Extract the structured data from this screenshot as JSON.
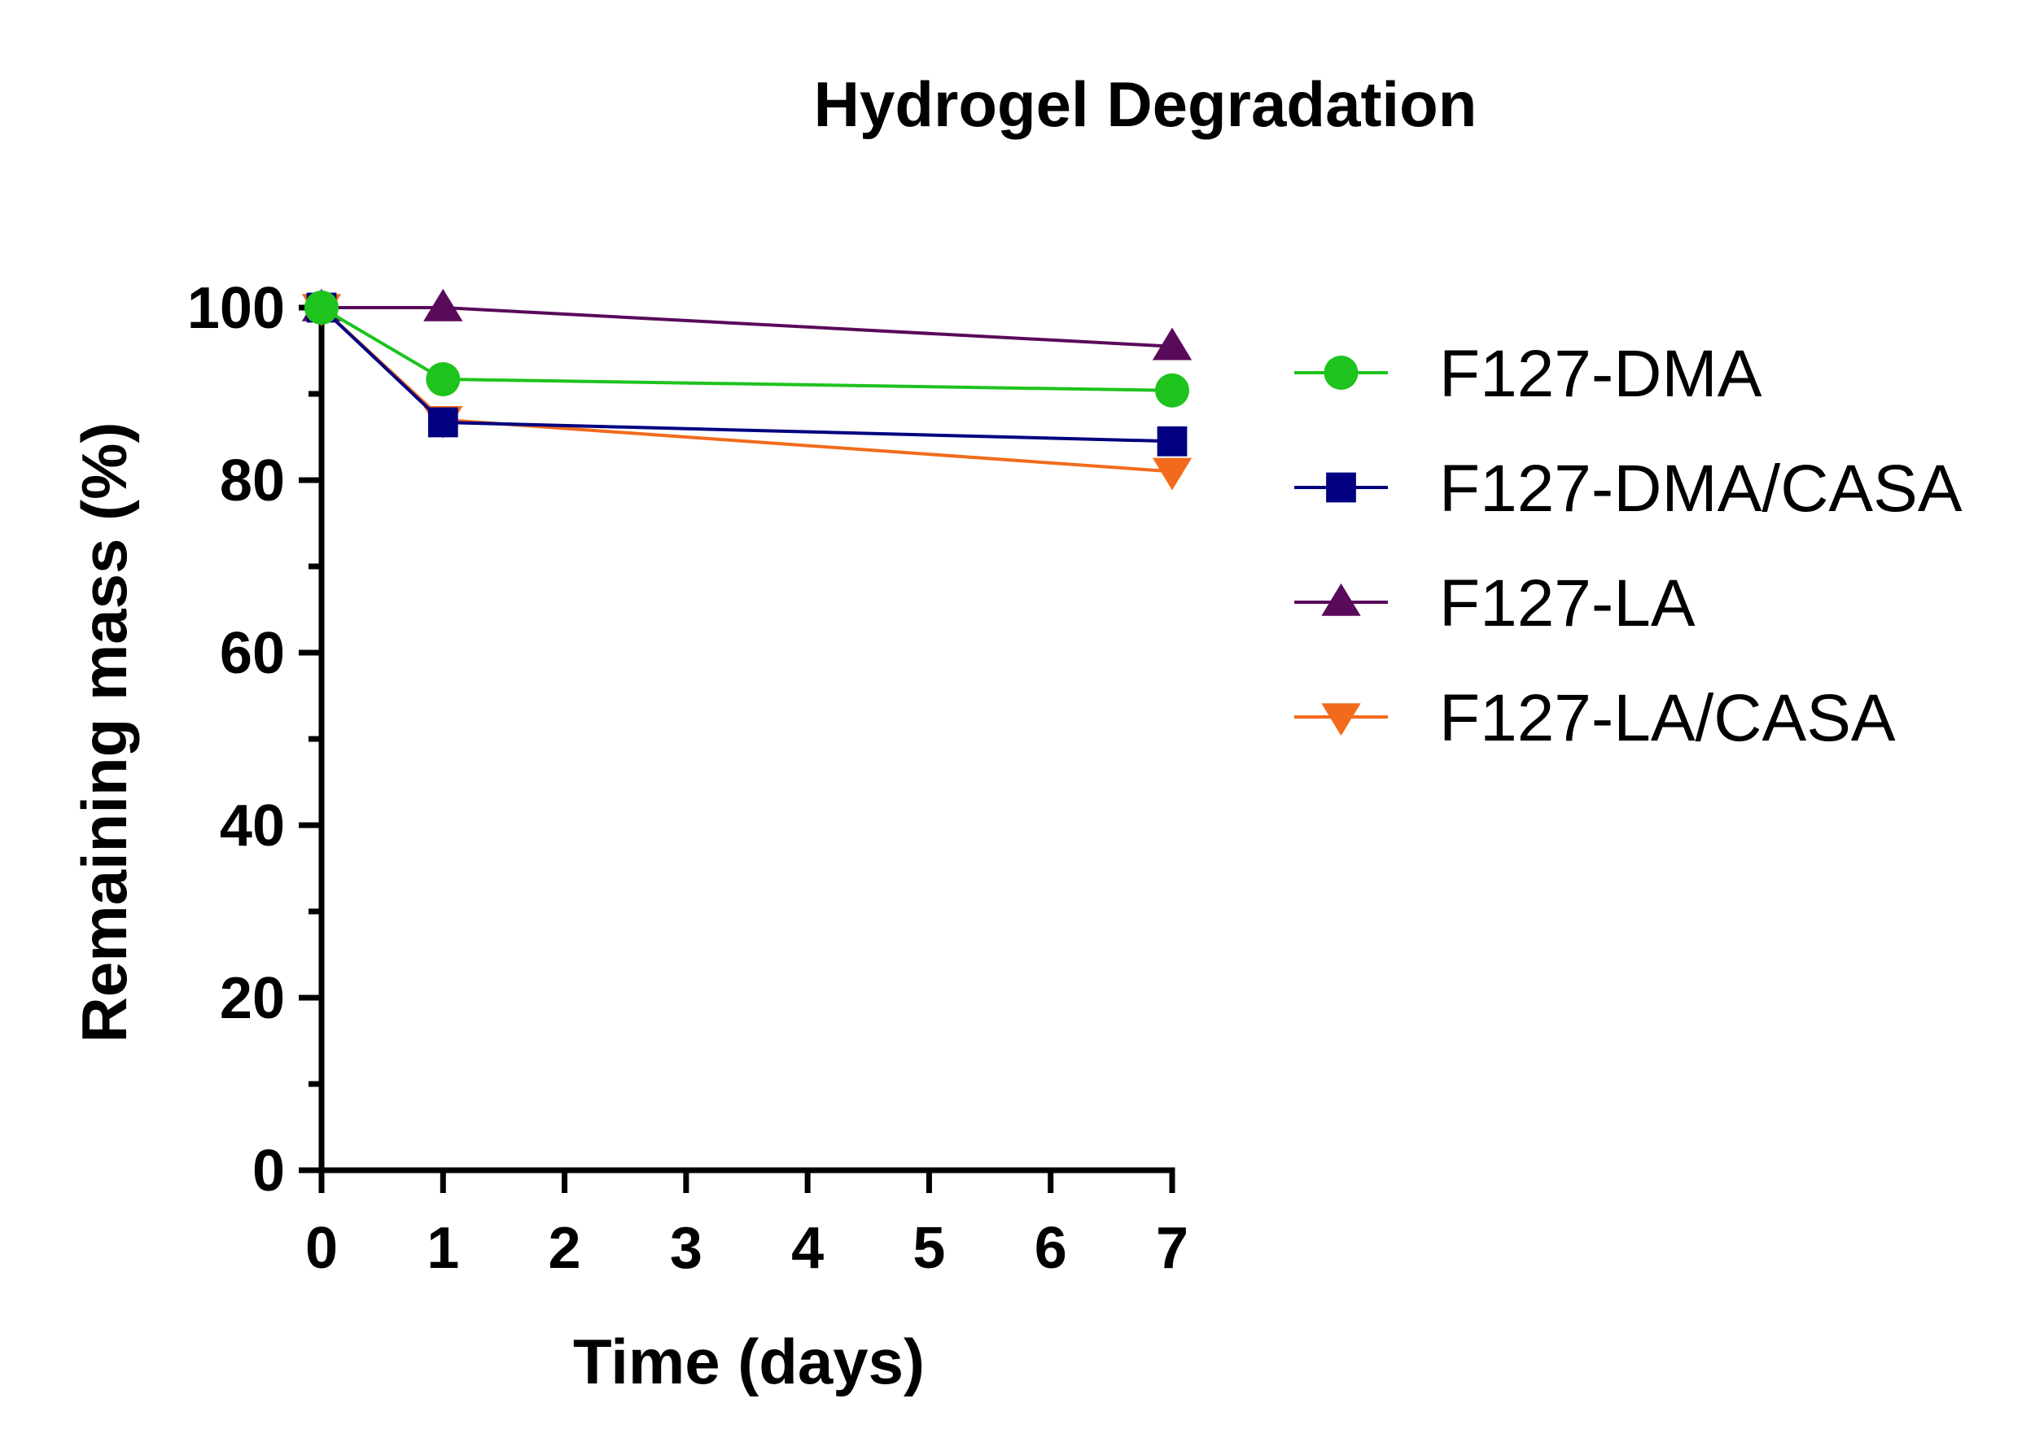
{
  "chart_data": {
    "type": "line",
    "title": "Hydrogel Degradation",
    "xlabel": "Time (days)",
    "ylabel": "Remaining mass (%)",
    "xlim": [
      0,
      7
    ],
    "ylim": [
      0,
      100
    ],
    "xticks": [
      0,
      1,
      2,
      3,
      4,
      5,
      6,
      7
    ],
    "yticks": [
      0,
      20,
      40,
      60,
      80,
      100
    ],
    "x": [
      0,
      1,
      7
    ],
    "grid": false,
    "legend_position": "right",
    "series": [
      {
        "name": "F127-DMA",
        "values": [
          100,
          91.7,
          90.4
        ],
        "color": "#1ec31e",
        "marker": "circle"
      },
      {
        "name": "F127-DMA/CASA",
        "values": [
          100,
          86.7,
          84.5
        ],
        "color": "#000080",
        "marker": "square"
      },
      {
        "name": "F127-LA",
        "values": [
          100,
          100,
          95.5
        ],
        "color": "#5a0a5a",
        "marker": "triangle-up"
      },
      {
        "name": "F127-LA/CASA",
        "values": [
          100,
          87,
          81
        ],
        "color": "#f26b1d",
        "marker": "triangle-down"
      }
    ]
  }
}
